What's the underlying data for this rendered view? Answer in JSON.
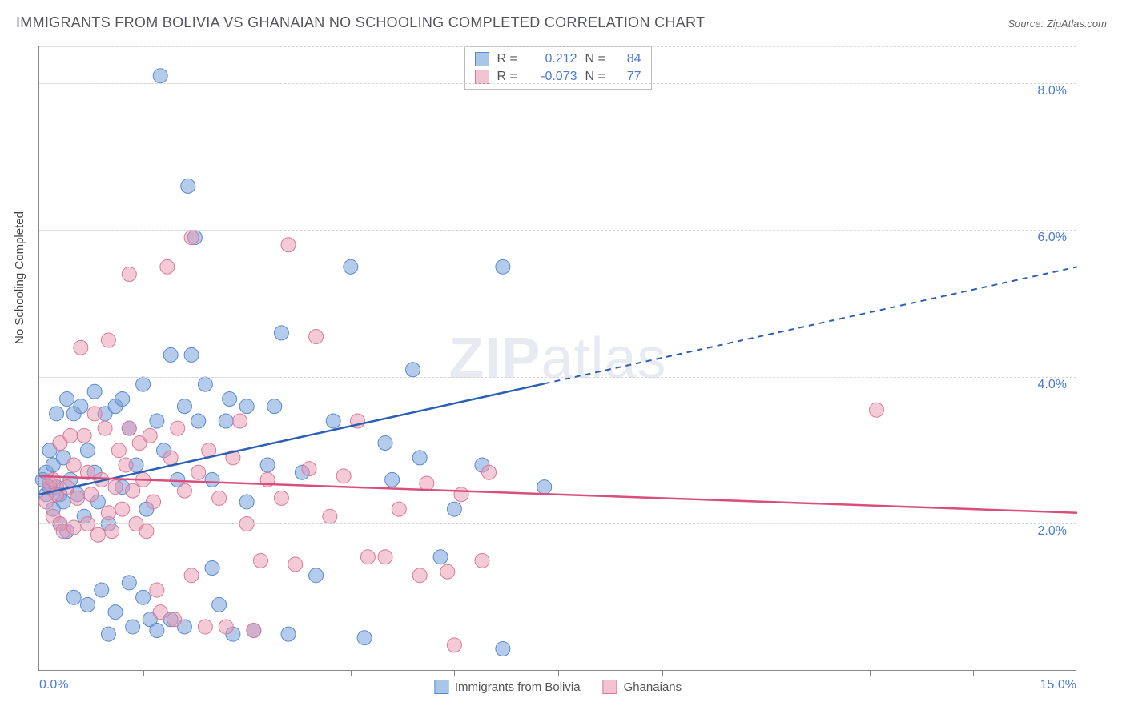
{
  "title": "IMMIGRANTS FROM BOLIVIA VS GHANAIAN NO SCHOOLING COMPLETED CORRELATION CHART",
  "source_prefix": "Source: ",
  "source_name": "ZipAtlas.com",
  "watermark_bold": "ZIP",
  "watermark_rest": "atlas",
  "y_axis_label": "No Schooling Completed",
  "chart": {
    "type": "scatter-with-regression",
    "xlim": [
      0,
      15
    ],
    "ylim": [
      0,
      8.5
    ],
    "x_ticks": [
      0,
      15
    ],
    "x_tick_labels": [
      "0.0%",
      "15.0%"
    ],
    "minor_x_ticks": [
      1.5,
      3.0,
      4.5,
      6.0,
      7.5,
      9.0,
      10.5,
      12.0,
      13.5
    ],
    "y_gridlines": [
      2,
      4,
      6,
      8
    ],
    "y_tick_labels": [
      "2.0%",
      "4.0%",
      "6.0%",
      "8.0%"
    ],
    "background_color": "#ffffff",
    "grid_color": "#d5d5d5",
    "axis_color": "#888888",
    "series": [
      {
        "name": "Immigrants from Bolivia",
        "color_fill": "rgba(120,160,220,0.55)",
        "color_stroke": "#5a8acb",
        "swatch_fill": "#a9c6ea",
        "swatch_border": "#5a8acb",
        "line_color": "#2c5fb3",
        "R": "0.212",
        "N": "84",
        "marker_radius": 9,
        "regression": {
          "x1": 0,
          "y1": 2.4,
          "x2": 15,
          "y2": 5.5,
          "solid_until_x": 7.3
        },
        "points": [
          [
            0.05,
            2.6
          ],
          [
            0.1,
            2.4
          ],
          [
            0.1,
            2.7
          ],
          [
            0.15,
            2.5
          ],
          [
            0.15,
            3.0
          ],
          [
            0.2,
            2.8
          ],
          [
            0.2,
            2.2
          ],
          [
            0.25,
            2.5
          ],
          [
            0.25,
            3.5
          ],
          [
            0.3,
            2.4
          ],
          [
            0.3,
            2.0
          ],
          [
            0.35,
            2.9
          ],
          [
            0.35,
            2.3
          ],
          [
            0.4,
            3.7
          ],
          [
            0.4,
            1.9
          ],
          [
            0.45,
            2.6
          ],
          [
            0.5,
            3.5
          ],
          [
            0.5,
            1.0
          ],
          [
            0.55,
            2.4
          ],
          [
            0.6,
            3.6
          ],
          [
            0.65,
            2.1
          ],
          [
            0.7,
            3.0
          ],
          [
            0.7,
            0.9
          ],
          [
            0.8,
            2.7
          ],
          [
            0.8,
            3.8
          ],
          [
            0.85,
            2.3
          ],
          [
            0.9,
            1.1
          ],
          [
            0.95,
            3.5
          ],
          [
            1.0,
            0.5
          ],
          [
            1.0,
            2.0
          ],
          [
            1.1,
            3.6
          ],
          [
            1.1,
            0.8
          ],
          [
            1.2,
            2.5
          ],
          [
            1.2,
            3.7
          ],
          [
            1.3,
            1.2
          ],
          [
            1.3,
            3.3
          ],
          [
            1.35,
            0.6
          ],
          [
            1.4,
            2.8
          ],
          [
            1.5,
            3.9
          ],
          [
            1.5,
            1.0
          ],
          [
            1.55,
            2.2
          ],
          [
            1.6,
            0.7
          ],
          [
            1.7,
            3.4
          ],
          [
            1.7,
            0.55
          ],
          [
            1.75,
            8.1
          ],
          [
            1.8,
            3.0
          ],
          [
            1.9,
            4.3
          ],
          [
            1.9,
            0.7
          ],
          [
            2.0,
            2.6
          ],
          [
            2.1,
            3.6
          ],
          [
            2.1,
            0.6
          ],
          [
            2.15,
            6.6
          ],
          [
            2.2,
            4.3
          ],
          [
            2.25,
            5.9
          ],
          [
            2.3,
            3.4
          ],
          [
            2.4,
            3.9
          ],
          [
            2.5,
            1.4
          ],
          [
            2.5,
            2.6
          ],
          [
            2.6,
            0.9
          ],
          [
            2.7,
            3.4
          ],
          [
            2.75,
            3.7
          ],
          [
            2.8,
            0.5
          ],
          [
            3.0,
            2.3
          ],
          [
            3.0,
            3.6
          ],
          [
            3.1,
            0.55
          ],
          [
            3.3,
            2.8
          ],
          [
            3.4,
            3.6
          ],
          [
            3.5,
            4.6
          ],
          [
            3.6,
            0.5
          ],
          [
            3.8,
            2.7
          ],
          [
            4.0,
            1.3
          ],
          [
            4.25,
            3.4
          ],
          [
            4.5,
            5.5
          ],
          [
            4.7,
            0.45
          ],
          [
            5.0,
            3.1
          ],
          [
            5.1,
            2.6
          ],
          [
            5.4,
            4.1
          ],
          [
            5.5,
            2.9
          ],
          [
            5.8,
            1.55
          ],
          [
            6.0,
            2.2
          ],
          [
            6.4,
            2.8
          ],
          [
            6.7,
            5.5
          ],
          [
            6.7,
            0.3
          ],
          [
            7.3,
            2.5
          ]
        ]
      },
      {
        "name": "Ghanaians",
        "color_fill": "rgba(235,150,175,0.5)",
        "color_stroke": "#d77a99",
        "swatch_fill": "#f3c3d2",
        "swatch_border": "#d77a99",
        "line_color": "#d94f7a",
        "R": "-0.073",
        "N": "77",
        "marker_radius": 9,
        "regression": {
          "x1": 0,
          "y1": 2.65,
          "x2": 15,
          "y2": 2.15,
          "solid_until_x": 15
        },
        "points": [
          [
            0.1,
            2.3
          ],
          [
            0.15,
            2.55
          ],
          [
            0.2,
            2.1
          ],
          [
            0.2,
            2.6
          ],
          [
            0.25,
            2.4
          ],
          [
            0.3,
            2.0
          ],
          [
            0.3,
            3.1
          ],
          [
            0.35,
            1.9
          ],
          [
            0.4,
            2.5
          ],
          [
            0.45,
            3.2
          ],
          [
            0.5,
            1.95
          ],
          [
            0.5,
            2.8
          ],
          [
            0.55,
            2.35
          ],
          [
            0.6,
            4.4
          ],
          [
            0.65,
            3.2
          ],
          [
            0.7,
            2.0
          ],
          [
            0.7,
            2.7
          ],
          [
            0.75,
            2.4
          ],
          [
            0.8,
            3.5
          ],
          [
            0.85,
            1.85
          ],
          [
            0.9,
            2.6
          ],
          [
            0.95,
            3.3
          ],
          [
            1.0,
            2.15
          ],
          [
            1.0,
            4.5
          ],
          [
            1.05,
            1.9
          ],
          [
            1.1,
            2.5
          ],
          [
            1.15,
            3.0
          ],
          [
            1.2,
            2.2
          ],
          [
            1.25,
            2.8
          ],
          [
            1.3,
            3.3
          ],
          [
            1.3,
            5.4
          ],
          [
            1.35,
            2.45
          ],
          [
            1.4,
            2.0
          ],
          [
            1.45,
            3.1
          ],
          [
            1.5,
            2.6
          ],
          [
            1.55,
            1.9
          ],
          [
            1.6,
            3.2
          ],
          [
            1.65,
            2.3
          ],
          [
            1.7,
            1.1
          ],
          [
            1.75,
            0.8
          ],
          [
            1.85,
            5.5
          ],
          [
            1.9,
            2.9
          ],
          [
            1.95,
            0.7
          ],
          [
            2.0,
            3.3
          ],
          [
            2.1,
            2.45
          ],
          [
            2.2,
            1.3
          ],
          [
            2.2,
            5.9
          ],
          [
            2.3,
            2.7
          ],
          [
            2.4,
            0.6
          ],
          [
            2.45,
            3.0
          ],
          [
            2.6,
            2.35
          ],
          [
            2.7,
            0.6
          ],
          [
            2.8,
            2.9
          ],
          [
            2.9,
            3.4
          ],
          [
            3.0,
            2.0
          ],
          [
            3.1,
            0.55
          ],
          [
            3.2,
            1.5
          ],
          [
            3.3,
            2.6
          ],
          [
            3.5,
            2.35
          ],
          [
            3.6,
            5.8
          ],
          [
            3.7,
            1.45
          ],
          [
            3.9,
            2.75
          ],
          [
            4.0,
            4.55
          ],
          [
            4.2,
            2.1
          ],
          [
            4.4,
            2.65
          ],
          [
            4.6,
            3.4
          ],
          [
            4.75,
            1.55
          ],
          [
            5.0,
            1.55
          ],
          [
            5.2,
            2.2
          ],
          [
            5.5,
            1.3
          ],
          [
            5.6,
            2.55
          ],
          [
            5.9,
            1.35
          ],
          [
            6.0,
            0.35
          ],
          [
            6.1,
            2.4
          ],
          [
            6.4,
            1.5
          ],
          [
            6.5,
            2.7
          ],
          [
            12.1,
            3.55
          ]
        ]
      }
    ]
  },
  "stats_box": {
    "r_label": "R =",
    "n_label": "N ="
  },
  "legend": {
    "items": [
      "Immigrants from Bolivia",
      "Ghanaians"
    ]
  }
}
